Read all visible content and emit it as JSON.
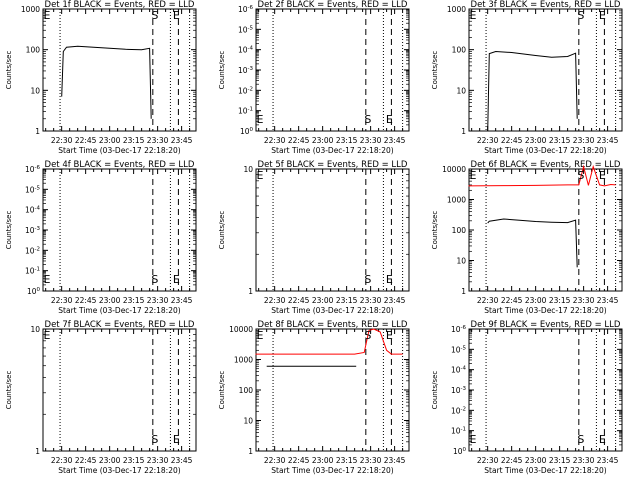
{
  "x_ticks": [
    "22:30",
    "22:45",
    "23:00",
    "23:15",
    "23:30",
    "23:45"
  ],
  "xlabel": "Start Time (03-Dec-17 22:18:20)",
  "ylabel": "Counts/sec",
  "event_marks": {
    "start": "S",
    "end": "E"
  },
  "colors": {
    "events": "#000000",
    "lld": "#ff0000"
  },
  "chart_data": [
    {
      "type": "line",
      "title": "Det 1f BLACK = Events, RED = LLD",
      "xlabel": "Start Time (03-Dec-17 22:18:20)",
      "ylabel": "Counts/sec",
      "yscale": "log",
      "ylim": [
        1,
        1000
      ],
      "y_ticks": [
        "1",
        "10",
        "100",
        "1000"
      ],
      "series": [
        {
          "name": "Events",
          "color": "#000000",
          "x": [
            "22:30",
            "22:31",
            "22:33",
            "22:40",
            "22:50",
            "23:00",
            "23:10",
            "23:20",
            "23:25",
            "23:26"
          ],
          "y": [
            7,
            90,
            115,
            122,
            115,
            108,
            102,
            100,
            108,
            2
          ]
        }
      ]
    },
    {
      "type": "line",
      "title": "Det 2f BLACK = Events, RED = LLD",
      "xlabel": "Start Time (03-Dec-17 22:18:20)",
      "ylabel": "Counts/sec",
      "yscale": "log",
      "ylim": [
        1,
        1e-06
      ],
      "y_ticks": [
        "10^0",
        "10^-1",
        "10^-2",
        "10^-3",
        "10^-4",
        "10^-5",
        "10^-6"
      ],
      "series": []
    },
    {
      "type": "line",
      "title": "Det 3f BLACK = Events, RED = LLD",
      "xlabel": "Start Time (03-Dec-17 22:18:20)",
      "ylabel": "Counts/sec",
      "yscale": "log",
      "ylim": [
        1,
        1000
      ],
      "y_ticks": [
        "1",
        "10",
        "100",
        "1000"
      ],
      "series": [
        {
          "name": "Events",
          "color": "#000000",
          "x": [
            "22:30",
            "22:31",
            "22:35",
            "22:45",
            "23:00",
            "23:10",
            "23:20",
            "23:25",
            "23:26"
          ],
          "y": [
            1,
            80,
            90,
            85,
            72,
            65,
            68,
            82,
            2
          ]
        }
      ]
    },
    {
      "type": "line",
      "title": "Det 4f BLACK = Events, RED = LLD",
      "xlabel": "Start Time (03-Dec-17 22:18:20)",
      "ylabel": "Counts/sec",
      "yscale": "log",
      "ylim": [
        1,
        1e-06
      ],
      "y_ticks": [
        "10^0",
        "10^-1",
        "10^-2",
        "10^-3",
        "10^-4",
        "10^-5",
        "10^-6"
      ],
      "series": []
    },
    {
      "type": "line",
      "title": "Det 5f BLACK = Events, RED = LLD",
      "xlabel": "Start Time (03-Dec-17 22:18:20)",
      "ylabel": "Counts/sec",
      "yscale": "log",
      "ylim": [
        1,
        10
      ],
      "y_ticks": [
        "1",
        "10"
      ],
      "series": []
    },
    {
      "type": "line",
      "title": "Det 6f BLACK = Events, RED = LLD",
      "xlabel": "Start Time (03-Dec-17 22:18:20)",
      "ylabel": "Counts/sec",
      "yscale": "log",
      "ylim": [
        1,
        10000
      ],
      "y_ticks": [
        "1",
        "10",
        "100",
        "1000",
        "10000"
      ],
      "series": [
        {
          "name": "LLD",
          "color": "#ff0000",
          "x": [
            "22:18",
            "22:40",
            "23:00",
            "23:20",
            "23:27",
            "23:30",
            "23:33",
            "23:36",
            "23:40",
            "23:43",
            "23:47",
            "23:50"
          ],
          "y": [
            2800,
            2850,
            2900,
            3000,
            3000,
            12000,
            2900,
            12000,
            3000,
            2800,
            3100,
            3000
          ]
        },
        {
          "name": "Events",
          "color": "#000000",
          "x": [
            "22:30",
            "22:31",
            "22:40",
            "22:50",
            "23:00",
            "23:10",
            "23:20",
            "23:25",
            "23:26"
          ],
          "y": [
            170,
            195,
            230,
            210,
            190,
            180,
            175,
            210,
            6
          ]
        }
      ]
    },
    {
      "type": "line",
      "title": "Det 7f BLACK = Events, RED = LLD",
      "xlabel": "Start Time (03-Dec-17 22:18:20)",
      "ylabel": "Counts/sec",
      "yscale": "log",
      "ylim": [
        1,
        10
      ],
      "y_ticks": [
        "1",
        "10"
      ],
      "series": []
    },
    {
      "type": "line",
      "title": "Det 8f BLACK = Events, RED = LLD",
      "xlabel": "Start Time (03-Dec-17 22:18:20)",
      "ylabel": "Counts/sec",
      "yscale": "log",
      "ylim": [
        1,
        10000
      ],
      "y_ticks": [
        "1",
        "10",
        "100",
        "1000",
        "10000"
      ],
      "series": [
        {
          "name": "LLD",
          "color": "#ff0000",
          "x": [
            "22:18",
            "22:30",
            "23:00",
            "23:20",
            "23:26",
            "23:29",
            "23:32",
            "23:36",
            "23:40",
            "23:43",
            "23:48",
            "23:50"
          ],
          "y": [
            1500,
            1500,
            1500,
            1500,
            1700,
            9000,
            10000,
            8000,
            2000,
            1500,
            1500,
            1500
          ]
        },
        {
          "name": "Events",
          "color": "#000000",
          "x": [
            "22:25",
            "22:40",
            "23:00",
            "23:10",
            "23:21"
          ],
          "y": [
            600,
            600,
            600,
            600,
            600
          ]
        }
      ]
    },
    {
      "type": "line",
      "title": "Det 9f BLACK = Events, RED = LLD",
      "xlabel": "Start Time (03-Dec-17 22:18:20)",
      "ylabel": "Counts/sec",
      "yscale": "log",
      "ylim": [
        1,
        1e-06
      ],
      "y_ticks": [
        "10^0",
        "10^-1",
        "10^-2",
        "10^-3",
        "10^-4",
        "10^-5",
        "10^-6"
      ],
      "series": []
    }
  ]
}
